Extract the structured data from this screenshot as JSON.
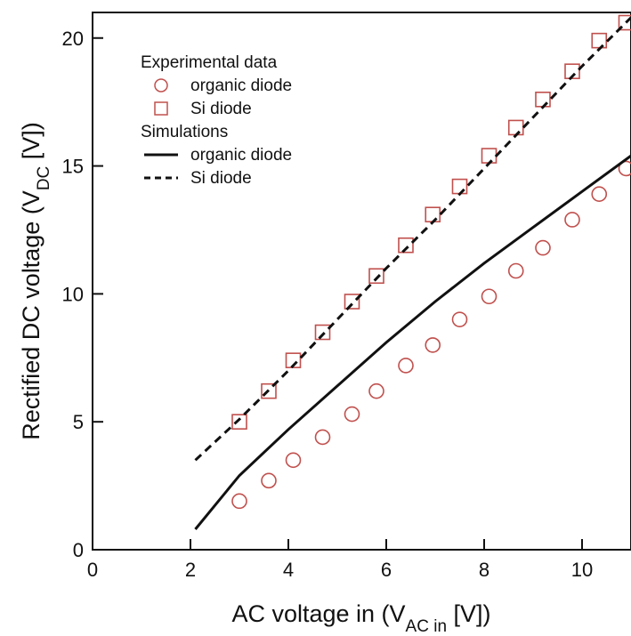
{
  "chart_data": {
    "type": "scatter",
    "xlabel": {
      "prefix": "AC voltage in (V",
      "sub": "AC in",
      "suffix": " [V])"
    },
    "ylabel": {
      "prefix": "Rectified DC voltage (V",
      "sub": "DC",
      "suffix": " [V])"
    },
    "xlim": [
      0,
      11
    ],
    "ylim": [
      0,
      21
    ],
    "x_ticks": [
      0,
      2,
      4,
      6,
      8,
      10
    ],
    "y_ticks": [
      0,
      5,
      10,
      15,
      20
    ],
    "grid": false,
    "legend": {
      "placement": "top-left",
      "groups": [
        {
          "title": "Experimental data",
          "entries": [
            "organic diode",
            "Si diode"
          ]
        },
        {
          "title": "Simulations",
          "entries": [
            "organic diode",
            "Si diode"
          ]
        }
      ]
    },
    "series": [
      {
        "name": "organic diode",
        "group": "Experimental data",
        "kind": "marker",
        "marker": "circle",
        "color": "#c0504d",
        "x": [
          3.0,
          3.6,
          4.1,
          4.7,
          5.3,
          5.8,
          6.4,
          6.95,
          7.5,
          8.1,
          8.65,
          9.2,
          9.8,
          10.35,
          10.9
        ],
        "y": [
          1.9,
          2.7,
          3.5,
          4.4,
          5.3,
          6.2,
          7.2,
          8.0,
          9.0,
          9.9,
          10.9,
          11.8,
          12.9,
          13.9,
          14.9
        ]
      },
      {
        "name": "Si diode",
        "group": "Experimental data",
        "kind": "marker",
        "marker": "square",
        "color": "#c0504d",
        "x": [
          3.0,
          3.6,
          4.1,
          4.7,
          5.3,
          5.8,
          6.4,
          6.95,
          7.5,
          8.1,
          8.65,
          9.2,
          9.8,
          10.35,
          10.9
        ],
        "y": [
          5.0,
          6.2,
          7.4,
          8.5,
          9.7,
          10.7,
          11.9,
          13.1,
          14.2,
          15.4,
          16.5,
          17.6,
          18.7,
          19.9,
          20.6
        ]
      },
      {
        "name": "organic diode",
        "group": "Simulations",
        "kind": "line",
        "dash": "solid",
        "color": "#111111",
        "x": [
          2.1,
          3.0,
          4.0,
          5.0,
          6.0,
          7.0,
          8.0,
          9.0,
          10.0,
          11.0
        ],
        "y": [
          0.8,
          2.9,
          4.7,
          6.4,
          8.1,
          9.7,
          11.2,
          12.6,
          14.0,
          15.4
        ]
      },
      {
        "name": "Si diode",
        "group": "Simulations",
        "kind": "line",
        "dash": "dashed",
        "color": "#111111",
        "x": [
          2.1,
          3.0,
          4.0,
          5.0,
          6.0,
          7.0,
          8.0,
          9.0,
          10.0,
          11.0
        ],
        "y": [
          3.5,
          5.1,
          7.0,
          9.0,
          11.0,
          12.9,
          14.9,
          16.9,
          18.9,
          20.8
        ]
      }
    ]
  }
}
